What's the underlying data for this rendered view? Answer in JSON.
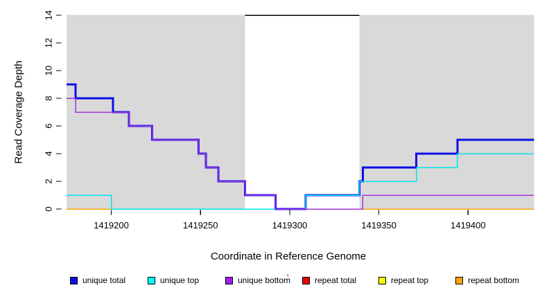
{
  "figure": {
    "x_axis_label": "Coordinate in Reference Genome",
    "y_axis_label": "Read Coverage Depth"
  },
  "chart_data": {
    "type": "line",
    "subtype": "step",
    "title": "",
    "xlabel": "Coordinate in Reference Genome",
    "ylabel": "Read Coverage Depth",
    "xlim": [
      1419172,
      1419439
    ],
    "ylim": [
      0,
      14
    ],
    "x_ticks": [
      1419200,
      1419250,
      1419300,
      1419350,
      1419400
    ],
    "y_ticks": [
      0,
      2,
      4,
      6,
      8,
      10,
      12,
      14
    ],
    "grid": false,
    "legend_position": "bottom",
    "background_regions": [
      {
        "name": "covered-left",
        "x1": 1419175,
        "x2": 1419275,
        "color": "#D9D9D9"
      },
      {
        "name": "gap",
        "x1": 1419275,
        "x2": 1419339,
        "color": "#FFFFFF"
      },
      {
        "name": "covered-right",
        "x1": 1419339,
        "x2": 1419437,
        "color": "#D9D9D9"
      }
    ],
    "mask_line": {
      "y": 14,
      "x1": 1419275,
      "x2": 1419339,
      "color": "#000000"
    },
    "series": [
      {
        "name": "unique total",
        "color": "#0D0DE8",
        "line_width": 3,
        "steps": [
          [
            1419175,
            9
          ],
          [
            1419180,
            8
          ],
          [
            1419201,
            7
          ],
          [
            1419210,
            6
          ],
          [
            1419223,
            5
          ],
          [
            1419249,
            4
          ],
          [
            1419253,
            3
          ],
          [
            1419260,
            2
          ],
          [
            1419275,
            1
          ],
          [
            1419292,
            0
          ],
          [
            1419309,
            1
          ],
          [
            1419339,
            2
          ],
          [
            1419341,
            3
          ],
          [
            1419371,
            4
          ],
          [
            1419394,
            5
          ],
          [
            1419437,
            5
          ]
        ]
      },
      {
        "name": "unique top",
        "color": "#00E5EE",
        "line_width": 1.5,
        "steps": [
          [
            1419175,
            1
          ],
          [
            1419200,
            0
          ],
          [
            1419309,
            1
          ],
          [
            1419339,
            2
          ],
          [
            1419371,
            3
          ],
          [
            1419394,
            4
          ],
          [
            1419437,
            4
          ]
        ]
      },
      {
        "name": "unique bottom",
        "color": "#A235E0",
        "line_width": 1.5,
        "steps": [
          [
            1419175,
            8
          ],
          [
            1419180,
            7
          ],
          [
            1419210,
            6
          ],
          [
            1419223,
            5
          ],
          [
            1419249,
            4
          ],
          [
            1419253,
            3
          ],
          [
            1419260,
            2
          ],
          [
            1419275,
            1
          ],
          [
            1419292,
            0
          ],
          [
            1419341,
            1
          ],
          [
            1419437,
            1
          ]
        ]
      },
      {
        "name": "repeat total",
        "color": "#EE0000",
        "line_width": 1.5,
        "steps": [
          [
            1419175,
            0
          ],
          [
            1419437,
            0
          ]
        ]
      },
      {
        "name": "repeat top",
        "color": "#FFFF00",
        "line_width": 1.5,
        "steps": [
          [
            1419175,
            0
          ],
          [
            1419437,
            0
          ]
        ]
      },
      {
        "name": "repeat bottom",
        "color": "#FFA500",
        "line_width": 1.5,
        "steps": [
          [
            1419175,
            0
          ],
          [
            1419437,
            0
          ]
        ]
      }
    ],
    "draw_order": [
      "repeat total",
      "repeat top",
      "repeat bottom",
      "unique total",
      "unique top",
      "unique bottom"
    ]
  },
  "legend": {
    "items": [
      {
        "label": "unique total",
        "color": "#0D0DE8"
      },
      {
        "label": "unique top",
        "color": "#00FFFF"
      },
      {
        "label": "unique bottom",
        "color": "#A020F0"
      },
      {
        "label": "repeat total",
        "color": "#EE0000"
      },
      {
        "label": "repeat top",
        "color": "#FFFF00"
      },
      {
        "label": "repeat bottom",
        "color": "#FFA500"
      }
    ],
    "stray_mark": "'"
  }
}
